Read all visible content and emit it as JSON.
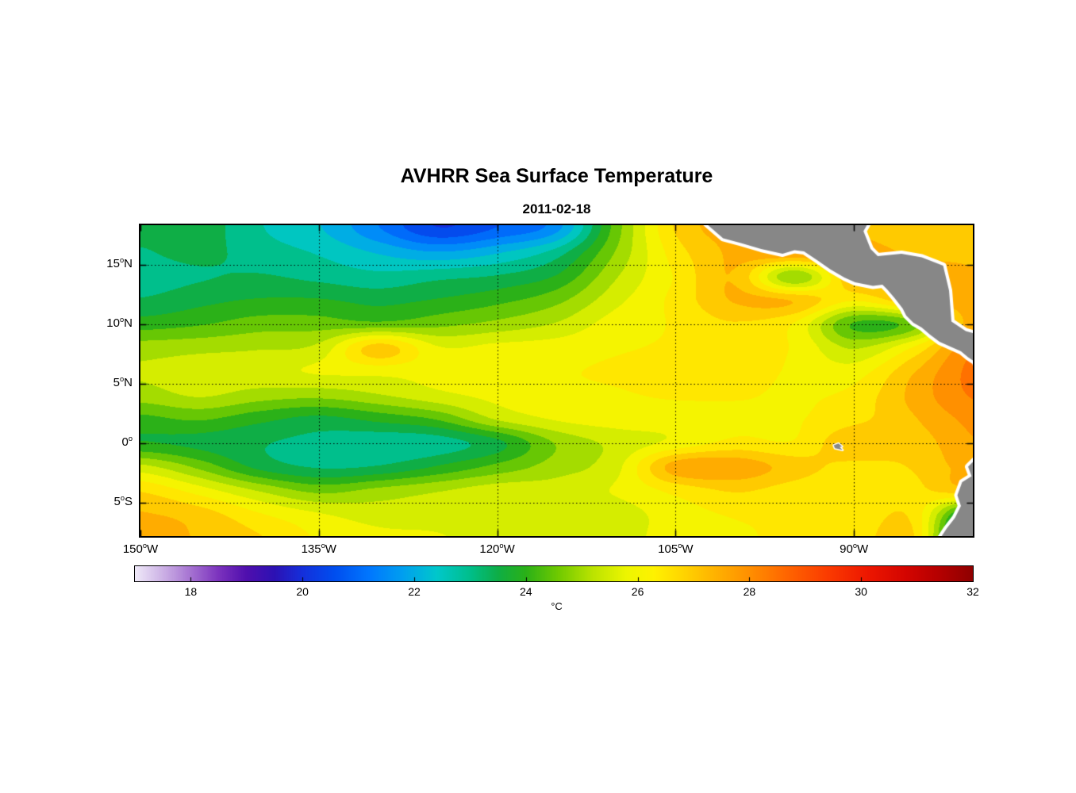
{
  "title": "AVHRR Sea Surface Temperature",
  "subtitle": "2011-02-18",
  "colorbar": {
    "label": "°C",
    "tick_values": [
      18,
      20,
      22,
      24,
      26,
      28,
      30,
      32
    ],
    "range": [
      17,
      32
    ]
  },
  "axes": {
    "lat_ticks": [
      {
        "text": "15",
        "sup": "o",
        "suffix": "N",
        "value": 15
      },
      {
        "text": "10",
        "sup": "o",
        "suffix": "N",
        "value": 10
      },
      {
        "text": "5",
        "sup": "o",
        "suffix": "N",
        "value": 5
      },
      {
        "text": "0",
        "sup": "o",
        "suffix": "",
        "value": 0
      },
      {
        "text": "5",
        "sup": "o",
        "suffix": "S",
        "value": -5
      }
    ],
    "lon_ticks": [
      {
        "text": "150",
        "sup": "o",
        "suffix": "W",
        "value": -150
      },
      {
        "text": "135",
        "sup": "o",
        "suffix": "W",
        "value": -135
      },
      {
        "text": "120",
        "sup": "o",
        "suffix": "W",
        "value": -120
      },
      {
        "text": "105",
        "sup": "o",
        "suffix": "W",
        "value": -105
      },
      {
        "text": "90",
        "sup": "o",
        "suffix": "W",
        "value": -90
      }
    ]
  },
  "land": {
    "fill_color": "#878787",
    "coast_gap_color": "#ffffff",
    "polygons": {
      "central_america": [
        [
          -102.5,
          18.5
        ],
        [
          -101.0,
          17.2
        ],
        [
          -99.5,
          16.8
        ],
        [
          -97.8,
          16.3
        ],
        [
          -96.0,
          15.9
        ],
        [
          -95.0,
          16.2
        ],
        [
          -94.2,
          16.1
        ],
        [
          -93.0,
          15.3
        ],
        [
          -92.0,
          14.6
        ],
        [
          -90.8,
          13.9
        ],
        [
          -89.9,
          13.5
        ],
        [
          -88.4,
          13.2
        ],
        [
          -87.6,
          13.3
        ],
        [
          -87.2,
          12.9
        ],
        [
          -86.6,
          12.2
        ],
        [
          -85.9,
          11.3
        ],
        [
          -85.6,
          10.7
        ],
        [
          -85.0,
          10.1
        ],
        [
          -84.3,
          9.7
        ],
        [
          -83.6,
          9.1
        ],
        [
          -82.8,
          8.5
        ],
        [
          -81.9,
          8.1
        ],
        [
          -81.0,
          7.7
        ],
        [
          -80.4,
          7.2
        ],
        [
          -79.8,
          6.8
        ],
        [
          -79.3,
          4.6
        ],
        [
          -79.2,
          9.0
        ],
        [
          -80.6,
          9.4
        ],
        [
          -81.8,
          10.2
        ],
        [
          -82.0,
          12.8
        ],
        [
          -82.5,
          14.9
        ],
        [
          -84.3,
          15.6
        ],
        [
          -86.0,
          15.9
        ],
        [
          -88.0,
          15.7
        ],
        [
          -88.6,
          16.3
        ],
        [
          -89.2,
          17.8
        ],
        [
          -88.8,
          18.5
        ]
      ],
      "south_america": [
        [
          -79.6,
          -1.2
        ],
        [
          -80.4,
          -2.0
        ],
        [
          -80.1,
          -2.8
        ],
        [
          -80.9,
          -3.3
        ],
        [
          -81.3,
          -4.4
        ],
        [
          -81.0,
          -5.3
        ],
        [
          -81.5,
          -6.3
        ],
        [
          -82.2,
          -7.2
        ],
        [
          -82.8,
          -8.1
        ],
        [
          -79.4,
          -8.1
        ]
      ],
      "galapagos": [
        [
          -91.7,
          -0.2
        ],
        [
          -91.3,
          -0.05
        ],
        [
          -91.0,
          -0.3
        ],
        [
          -91.2,
          -0.35
        ],
        [
          -90.95,
          -0.6
        ],
        [
          -91.35,
          -0.5
        ],
        [
          -91.6,
          -0.45
        ]
      ]
    }
  },
  "chart_data": {
    "type": "heatmap",
    "title": "AVHRR Sea Surface Temperature",
    "subtitle": "2011-02-18",
    "units": "°C",
    "x_tick_labels": [
      "150°W",
      "135°W",
      "120°W",
      "105°W",
      "90°W"
    ],
    "y_tick_labels": [
      "15°N",
      "10°N",
      "5°N",
      "0°",
      "5°S"
    ],
    "lon_range": [
      -150,
      -80
    ],
    "lat_range": [
      -7.83,
      18.3
    ],
    "grid_on": true,
    "legend_position": "bottom-colorbar",
    "colorbar_ticks": [
      18,
      20,
      22,
      24,
      26,
      28,
      30,
      32
    ],
    "colorbar_range": [
      17,
      32
    ],
    "contour_interval_c": 0.5,
    "colormap_stops": [
      [
        17.0,
        "#f0eaf9"
      ],
      [
        17.5,
        "#cdb2e6"
      ],
      [
        18.0,
        "#a673d2"
      ],
      [
        18.5,
        "#7c33be"
      ],
      [
        19.0,
        "#500fae"
      ],
      [
        19.5,
        "#2d12b4"
      ],
      [
        20.0,
        "#1530dc"
      ],
      [
        20.6,
        "#0050f0"
      ],
      [
        21.2,
        "#0078ff"
      ],
      [
        21.8,
        "#00a0f0"
      ],
      [
        22.4,
        "#00c8cc"
      ],
      [
        23.0,
        "#00bf8c"
      ],
      [
        23.5,
        "#0fae46"
      ],
      [
        24.0,
        "#2bb118"
      ],
      [
        24.6,
        "#73cb00"
      ],
      [
        25.2,
        "#bce400"
      ],
      [
        25.8,
        "#eef600"
      ],
      [
        26.3,
        "#fff200"
      ],
      [
        26.8,
        "#ffd600"
      ],
      [
        27.4,
        "#ffb200"
      ],
      [
        28.0,
        "#ff9000"
      ],
      [
        28.7,
        "#ff6400"
      ],
      [
        29.4,
        "#fb3c00"
      ],
      [
        30.1,
        "#ee1800"
      ],
      [
        30.8,
        "#d40500"
      ],
      [
        31.4,
        "#b50000"
      ],
      [
        32.0,
        "#8f0000"
      ]
    ],
    "grid": {
      "lons": [
        -150,
        -145,
        -140,
        -135,
        -130,
        -125,
        -120,
        -115,
        -110,
        -105,
        -100,
        -95,
        -90,
        -85,
        -80
      ],
      "lats": [
        18,
        16,
        14,
        12,
        10,
        8,
        6,
        4,
        2,
        0,
        -2,
        -4,
        -6,
        -8
      ],
      "sst_c": [
        [
          23.4,
          23.5,
          22.8,
          22.3,
          21.3,
          20.3,
          20.8,
          21.6,
          24.5,
          26.8,
          27.5,
          27.5,
          27.2,
          27.0,
          27.0
        ],
        [
          23.2,
          23.4,
          23.0,
          22.7,
          22.2,
          21.8,
          22.2,
          23.0,
          24.8,
          26.5,
          27.4,
          27.8,
          27.5,
          27.2,
          27.2
        ],
        [
          23.0,
          23.2,
          23.3,
          23.1,
          22.9,
          23.1,
          23.3,
          23.8,
          25.2,
          26.3,
          27.2,
          24.8,
          27.3,
          27.4,
          27.3
        ],
        [
          23.3,
          23.6,
          23.8,
          23.8,
          23.6,
          23.8,
          24.1,
          24.6,
          25.6,
          26.4,
          27.3,
          27.2,
          26.3,
          27.2,
          27.6
        ],
        [
          24.0,
          24.2,
          24.5,
          24.5,
          24.4,
          24.6,
          24.9,
          25.3,
          26.0,
          26.3,
          26.7,
          26.2,
          24.2,
          24.6,
          27.6
        ],
        [
          25.0,
          25.1,
          25.2,
          25.4,
          27.0,
          25.8,
          25.9,
          26.0,
          26.2,
          26.3,
          26.4,
          26.2,
          25.2,
          26.3,
          28.2
        ],
        [
          25.3,
          25.5,
          25.6,
          25.8,
          25.9,
          25.9,
          26.0,
          26.2,
          26.3,
          26.4,
          26.4,
          26.2,
          26.0,
          27.2,
          28.4
        ],
        [
          25.0,
          25.3,
          25.0,
          24.9,
          25.2,
          25.6,
          25.9,
          26.1,
          26.2,
          26.3,
          26.3,
          26.2,
          26.4,
          27.4,
          28.3
        ],
        [
          24.1,
          24.3,
          23.9,
          23.6,
          23.9,
          24.3,
          25.3,
          25.8,
          26.0,
          26.0,
          26.1,
          26.2,
          26.6,
          27.2,
          27.9
        ],
        [
          23.8,
          23.6,
          23.3,
          23.1,
          22.9,
          23.0,
          23.6,
          24.8,
          25.4,
          25.9,
          26.4,
          26.3,
          27.2,
          27.0,
          27.7
        ],
        [
          25.4,
          24.6,
          23.6,
          23.2,
          23.3,
          23.8,
          24.4,
          25.0,
          25.6,
          27.5,
          27.6,
          27.0,
          26.6,
          26.8,
          27.5
        ],
        [
          26.7,
          26.0,
          25.2,
          24.6,
          24.9,
          25.2,
          25.5,
          25.5,
          25.8,
          26.4,
          26.8,
          26.5,
          26.3,
          26.6,
          27.1
        ],
        [
          27.3,
          27.0,
          26.3,
          25.8,
          25.5,
          25.5,
          25.4,
          25.3,
          25.5,
          26.0,
          26.3,
          26.3,
          26.3,
          26.6,
          23.0
        ],
        [
          27.5,
          27.2,
          26.8,
          26.2,
          25.9,
          25.8,
          25.5,
          25.3,
          25.5,
          26.0,
          26.2,
          26.3,
          26.4,
          26.8,
          21.5
        ]
      ]
    }
  }
}
